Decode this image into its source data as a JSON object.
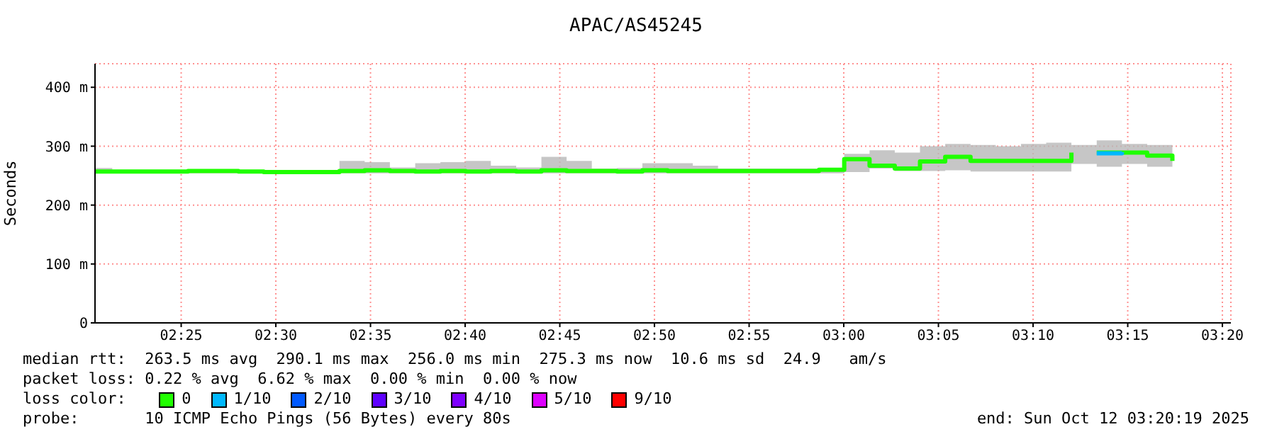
{
  "chart_data": {
    "type": "step",
    "title": "APAC/AS45245",
    "ylabel": "Seconds",
    "legend_title": "loss color:",
    "legend": "bottom",
    "grid": true,
    "xlim": [
      2.3408,
      3.3408
    ],
    "xticks": [
      {
        "value": 2.416667,
        "label": "02:25"
      },
      {
        "value": 2.5,
        "label": "02:30"
      },
      {
        "value": 2.583333,
        "label": "02:35"
      },
      {
        "value": 2.666667,
        "label": "02:40"
      },
      {
        "value": 2.75,
        "label": "02:45"
      },
      {
        "value": 2.833333,
        "label": "02:50"
      },
      {
        "value": 2.916667,
        "label": "02:55"
      },
      {
        "value": 3,
        "label": "03:00"
      },
      {
        "value": 3.083333,
        "label": "03:05"
      },
      {
        "value": 3.166667,
        "label": "03:10"
      },
      {
        "value": 3.25,
        "label": "03:15"
      },
      {
        "value": 3.333333,
        "label": "03:20"
      }
    ],
    "ylim": [
      0,
      440
    ],
    "yticks": [
      0,
      {
        "value": 100,
        "label": "100 m"
      },
      {
        "value": 200,
        "label": "200 m"
      },
      {
        "value": 300,
        "label": "300 m"
      },
      {
        "value": 400,
        "label": "400 m"
      }
    ],
    "x": [
      2.3408,
      2.356,
      2.3782,
      2.4004,
      2.4227,
      2.4449,
      2.4671,
      2.4893,
      2.5116,
      2.5338,
      2.556,
      2.5782,
      2.6004,
      2.6227,
      2.6449,
      2.6671,
      2.6893,
      2.7116,
      2.7338,
      2.756,
      2.7782,
      2.8004,
      2.8227,
      2.8449,
      2.8671,
      2.8893,
      2.9116,
      2.9338,
      2.956,
      2.9782,
      3.0004,
      3.0227,
      3.0449,
      3.0671,
      3.0893,
      3.1116,
      3.1338,
      3.156,
      3.1782,
      3.2004,
      3.2227,
      3.2449,
      3.2671,
      3.2893
    ],
    "series": [
      {
        "name": "0",
        "color": "#20ff00",
        "values": [
          257,
          257,
          257,
          257,
          258,
          258,
          257,
          256,
          256,
          256,
          258,
          259,
          258,
          257,
          258,
          257,
          258,
          257,
          259,
          258,
          258,
          257,
          259,
          258,
          258,
          258,
          258,
          258,
          258,
          260,
          278,
          267,
          262,
          274,
          282,
          275,
          275,
          275,
          275,
          289,
          null,
          null,
          284,
          275
        ],
        "lower": [
          254,
          254,
          254,
          254,
          254,
          254,
          254,
          254,
          254,
          254,
          254,
          254,
          254,
          254,
          254,
          254,
          254,
          254,
          254,
          254,
          254,
          254,
          254,
          254,
          254,
          254,
          254,
          254,
          254,
          254,
          256,
          262,
          258,
          258,
          259,
          257,
          257,
          257,
          257,
          270,
          265,
          270,
          265,
          264
        ],
        "upper": [
          263,
          259,
          258,
          258,
          260,
          260,
          258,
          258,
          258,
          258,
          275,
          273,
          264,
          271,
          273,
          275,
          267,
          264,
          282,
          275,
          262,
          263,
          271,
          271,
          267,
          262,
          262,
          262,
          262,
          261,
          287,
          293,
          289,
          300,
          304,
          302,
          300,
          304,
          306,
          302,
          310,
          304,
          302,
          299
        ]
      },
      {
        "name": "1/10",
        "color": "#00b8ff",
        "x": [
          3.2227,
          3.2449
        ],
        "values": [
          288,
          290
        ]
      },
      {
        "name": "2/10",
        "color": "#0059ff",
        "values": [
          null,
          null,
          null,
          null,
          null,
          null,
          null,
          null,
          null,
          null,
          null,
          null,
          null,
          null,
          null,
          null,
          null,
          null,
          null,
          null,
          null,
          null,
          null,
          null,
          null,
          null,
          null,
          null,
          null,
          null,
          null,
          null,
          null,
          null,
          null,
          null,
          null,
          null,
          null,
          null,
          null,
          null,
          null,
          null
        ]
      },
      {
        "name": "3/10",
        "color": "#5e00ff",
        "values": [
          null,
          null,
          null,
          null,
          null,
          null,
          null,
          null,
          null,
          null,
          null,
          null,
          null,
          null,
          null,
          null,
          null,
          null,
          null,
          null,
          null,
          null,
          null,
          null,
          null,
          null,
          null,
          null,
          null,
          null,
          null,
          null,
          null,
          null,
          null,
          null,
          null,
          null,
          null,
          null,
          null,
          null,
          null,
          null
        ]
      },
      {
        "name": "4/10",
        "color": "#7e00ff",
        "values": [
          null,
          null,
          null,
          null,
          null,
          null,
          null,
          null,
          null,
          null,
          null,
          null,
          null,
          null,
          null,
          null,
          null,
          null,
          null,
          null,
          null,
          null,
          null,
          null,
          null,
          null,
          null,
          null,
          null,
          null,
          null,
          null,
          null,
          null,
          null,
          null,
          null,
          null,
          null,
          null,
          null,
          null,
          null,
          null
        ]
      },
      {
        "name": "5/10",
        "color": "#dd00ff",
        "values": [
          null,
          null,
          null,
          null,
          null,
          null,
          null,
          null,
          null,
          null,
          null,
          null,
          null,
          null,
          null,
          null,
          null,
          null,
          null,
          null,
          null,
          null,
          null,
          null,
          null,
          null,
          null,
          null,
          null,
          null,
          null,
          null,
          null,
          null,
          null,
          null,
          null,
          null,
          null,
          null,
          null,
          null,
          null,
          null
        ]
      },
      {
        "name": "9/10",
        "color": "#ff0000",
        "values": [
          null,
          null,
          null,
          null,
          null,
          null,
          null,
          null,
          null,
          null,
          null,
          null,
          null,
          null,
          null,
          null,
          null,
          null,
          null,
          null,
          null,
          null,
          null,
          null,
          null,
          null,
          null,
          null,
          null,
          null,
          null,
          null,
          null,
          null,
          null,
          null,
          null,
          null,
          null,
          null,
          null,
          null,
          null,
          null
        ]
      }
    ],
    "annotations": [
      "median rtt:  263.5 ms avg  290.1 ms max  256.0 ms min  275.3 ms now  10.6 ms sd  24.9   am/s",
      "packet loss: 0.22 % avg  6.62 % max  0.00 % min  0.00 % now",
      "probe:       10 ICMP Echo Pings (56 Bytes) every 80s",
      "end: Sun Oct 12 03:20:19 2025"
    ]
  }
}
